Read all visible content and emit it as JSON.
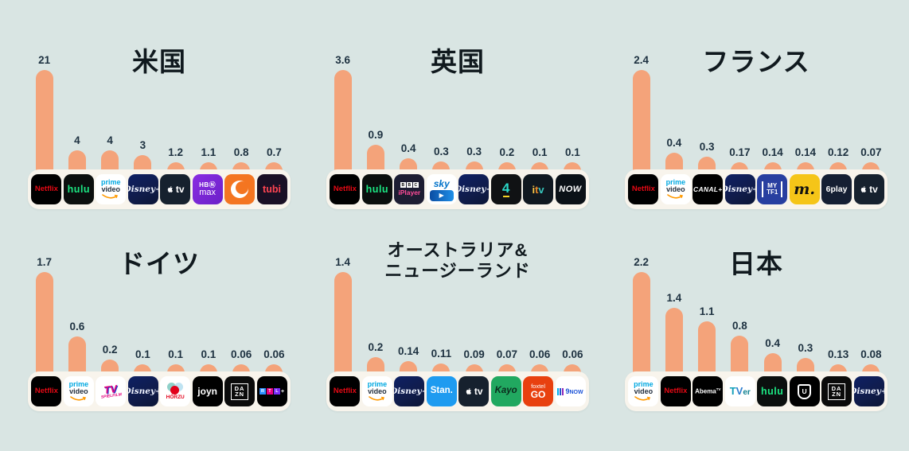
{
  "page": {
    "background": "#D9E5E3",
    "bar_color": "#F4A37A",
    "strip_bg": "#F8F4EC",
    "label_color": "#1D3140",
    "title_color": "#10191E"
  },
  "chart_data": [
    {
      "type": "bar",
      "title": "米国",
      "title_lines": [
        "米国"
      ],
      "categories": [
        "Netflix",
        "Hulu",
        "Prime Video",
        "Disney+",
        "Apple TV",
        "HBO Max",
        "Crunchyroll",
        "Tubi"
      ],
      "icons": [
        "netflix-icon",
        "hulu-icon",
        "prime-video-icon",
        "disney-plus-icon",
        "apple-tv-icon",
        "hbo-max-icon",
        "crunchyroll-icon",
        "tubi-icon"
      ],
      "values": [
        21,
        4,
        4,
        3,
        1.2,
        1.1,
        0.8,
        0.7
      ],
      "labels": [
        "21",
        "4",
        "4",
        "3",
        "1.2",
        "1.1",
        "0.8",
        "0.7"
      ],
      "xlabel": "",
      "ylabel": "",
      "ylim": [
        0,
        21
      ],
      "grid": false,
      "legend": "none"
    },
    {
      "type": "bar",
      "title": "英国",
      "title_lines": [
        "英国"
      ],
      "categories": [
        "Netflix",
        "Hulu",
        "BBC iPlayer",
        "Sky",
        "Disney+",
        "Channel 4",
        "ITV",
        "NOW"
      ],
      "icons": [
        "netflix-icon",
        "hulu-icon",
        "bbc-iplayer-icon",
        "sky-icon",
        "disney-plus-icon",
        "channel4-icon",
        "itv-icon",
        "now-icon"
      ],
      "values": [
        3.6,
        0.9,
        0.4,
        0.3,
        0.3,
        0.2,
        0.1,
        0.1
      ],
      "labels": [
        "3.6",
        "0.9",
        "0.4",
        "0.3",
        "0.3",
        "0.2",
        "0.1",
        "0.1"
      ],
      "xlabel": "",
      "ylabel": "",
      "ylim": [
        0,
        3.6
      ],
      "grid": false,
      "legend": "none"
    },
    {
      "type": "bar",
      "title": "フランス",
      "title_lines": [
        "フランス"
      ],
      "categories": [
        "Netflix",
        "Prime Video",
        "Canal+",
        "Disney+",
        "MYTF1",
        "Molotov",
        "6play",
        "Apple TV"
      ],
      "icons": [
        "netflix-icon",
        "prime-video-icon",
        "canal-plus-icon",
        "disney-plus-icon",
        "mytf1-icon",
        "molotov-icon",
        "sixplay-icon",
        "apple-tv-icon"
      ],
      "values": [
        2.4,
        0.4,
        0.3,
        0.17,
        0.14,
        0.14,
        0.12,
        0.07
      ],
      "labels": [
        "2.4",
        "0.4",
        "0.3",
        "0.17",
        "0.14",
        "0.14",
        "0.12",
        "0.07"
      ],
      "xlabel": "",
      "ylabel": "",
      "ylim": [
        0,
        2.4
      ],
      "grid": false,
      "legend": "none"
    },
    {
      "type": "bar",
      "title": "ドイツ",
      "title_lines": [
        "ドイツ"
      ],
      "categories": [
        "Netflix",
        "Prime Video",
        "TV Spielfilm",
        "Disney+",
        "HÖRZU",
        "Joyn",
        "DAZN",
        "RTL+"
      ],
      "icons": [
        "netflix-icon",
        "prime-video-icon",
        "tv-spielfilm-icon",
        "disney-plus-icon",
        "hoerzu-icon",
        "joyn-icon",
        "dazn-icon",
        "rtl-plus-icon"
      ],
      "values": [
        1.7,
        0.6,
        0.2,
        0.1,
        0.1,
        0.1,
        0.06,
        0.06
      ],
      "labels": [
        "1.7",
        "0.6",
        "0.2",
        "0.1",
        "0.1",
        "0.1",
        "0.06",
        "0.06"
      ],
      "xlabel": "",
      "ylabel": "",
      "ylim": [
        0,
        1.7
      ],
      "grid": false,
      "legend": "none"
    },
    {
      "type": "bar",
      "title": "オーストラリア&ニュージーランド",
      "title_lines": [
        "オーストラリア&",
        "ニュージーランド"
      ],
      "categories": [
        "Netflix",
        "Prime Video",
        "Disney+",
        "Stan",
        "Apple TV",
        "Kayo",
        "Foxtel GO",
        "9Now"
      ],
      "icons": [
        "netflix-icon",
        "prime-video-icon",
        "disney-plus-icon",
        "stan-icon",
        "apple-tv-icon",
        "kayo-icon",
        "foxtel-go-icon",
        "ninenow-icon"
      ],
      "values": [
        1.4,
        0.2,
        0.14,
        0.11,
        0.09,
        0.07,
        0.06,
        0.06
      ],
      "labels": [
        "1.4",
        "0.2",
        "0.14",
        "0.11",
        "0.09",
        "0.07",
        "0.06",
        "0.06"
      ],
      "xlabel": "",
      "ylabel": "",
      "ylim": [
        0,
        1.4
      ],
      "grid": false,
      "legend": "none"
    },
    {
      "type": "bar",
      "title": "日本",
      "title_lines": [
        "日本"
      ],
      "categories": [
        "Prime Video",
        "Netflix",
        "AbemaTV",
        "TVer",
        "Hulu",
        "U-NEXT",
        "DAZN",
        "Disney+"
      ],
      "icons": [
        "prime-video-icon",
        "netflix-icon",
        "abema-icon",
        "tver-icon",
        "hulu-icon",
        "unext-icon",
        "dazn-icon",
        "disney-plus-icon"
      ],
      "values": [
        2.2,
        1.4,
        1.1,
        0.8,
        0.4,
        0.3,
        0.13,
        0.08
      ],
      "labels": [
        "2.2",
        "1.4",
        "1.1",
        "0.8",
        "0.4",
        "0.3",
        "0.13",
        "0.08"
      ],
      "xlabel": "",
      "ylabel": "",
      "ylim": [
        0,
        2.2
      ],
      "grid": false,
      "legend": "none"
    }
  ]
}
